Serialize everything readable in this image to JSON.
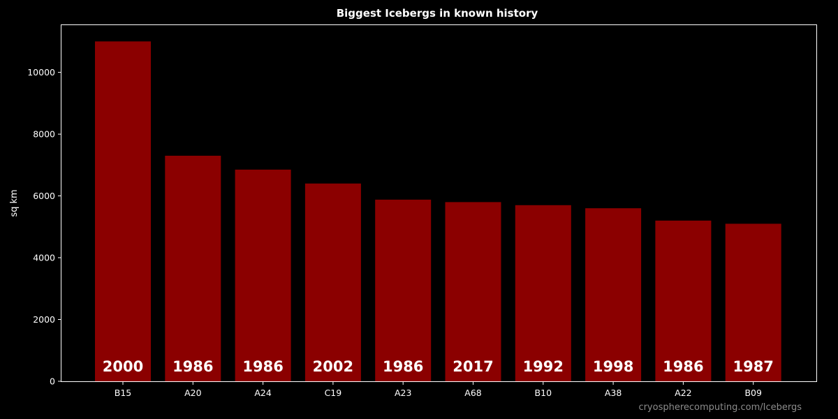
{
  "chart_data": {
    "type": "bar",
    "title": "Biggest Icebergs in known history",
    "xlabel": "",
    "ylabel": "sq km",
    "categories": [
      "B15",
      "A20",
      "A24",
      "C19",
      "A23",
      "A68",
      "B10",
      "A38",
      "A22",
      "B09"
    ],
    "values": [
      11000,
      7300,
      6850,
      6400,
      5880,
      5800,
      5700,
      5600,
      5200,
      5100
    ],
    "bar_labels": [
      "2000",
      "1986",
      "1986",
      "2002",
      "1986",
      "2017",
      "1992",
      "1998",
      "1986",
      "1987"
    ],
    "ylim": [
      0,
      11550
    ],
    "yticks": [
      0,
      2000,
      4000,
      6000,
      8000,
      10000
    ],
    "grid": false,
    "bar_color": "#8b0000",
    "background_color": "#000000"
  },
  "credit": "cryospherecomputing.com/Icebergs"
}
